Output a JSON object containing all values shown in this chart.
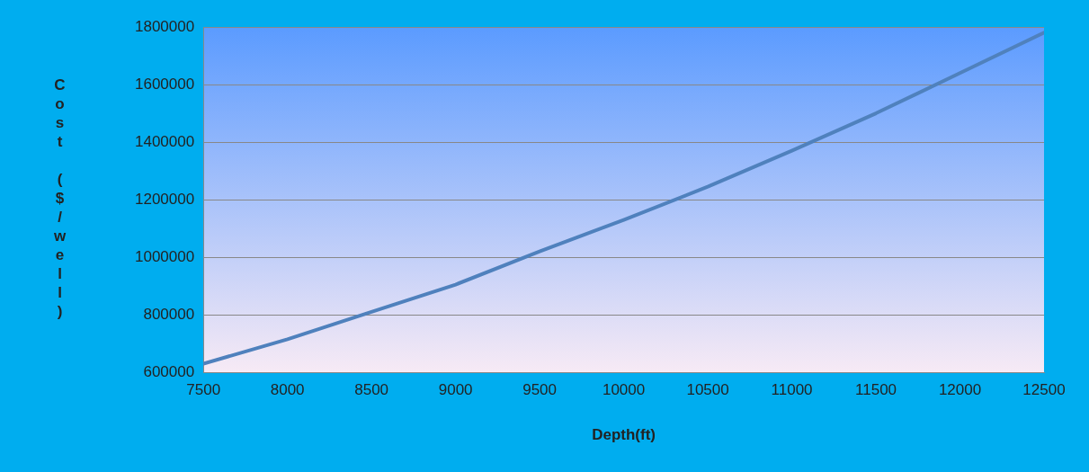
{
  "chart_data": {
    "type": "line",
    "xlabel": "Depth(ft)",
    "ylabel": "Cost ($/well)",
    "x": [
      7500,
      8000,
      8500,
      9000,
      9500,
      10000,
      10500,
      11000,
      11500,
      12000,
      12500
    ],
    "series": [
      {
        "color": "#4f81bd",
        "values": [
          630000,
          715000,
          810000,
          905000,
          1020000,
          1130000,
          1245000,
          1370000,
          1500000,
          1640000,
          1780000
        ]
      }
    ],
    "xlim": [
      7500,
      12500
    ],
    "xticks": [
      7500,
      8000,
      8500,
      9000,
      9500,
      10000,
      10500,
      11000,
      11500,
      12000,
      12500
    ],
    "ylim": [
      600000,
      1800000
    ],
    "yticks": [
      600000,
      800000,
      1000000,
      1200000,
      1400000,
      1600000,
      1800000
    ],
    "grid": "y",
    "legend": false,
    "marker": "none",
    "line_style": "solid"
  }
}
